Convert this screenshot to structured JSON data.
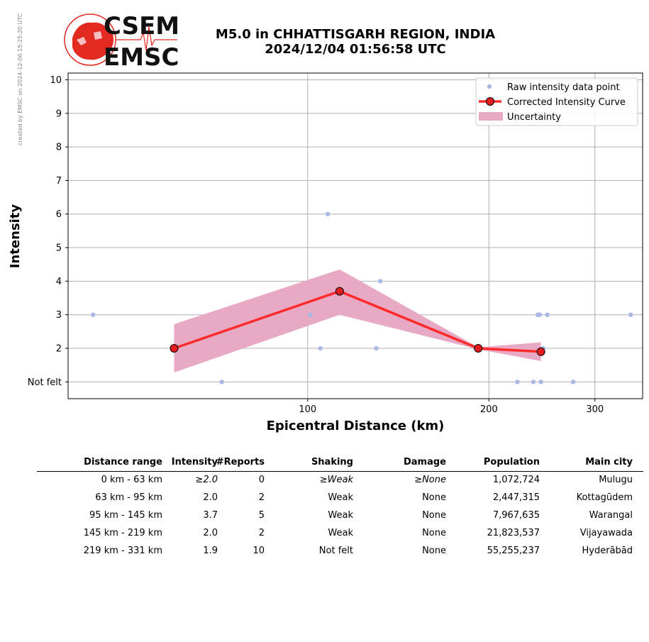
{
  "watermark": "created by EMSC on 2024-12-06 15:25:20 UTC",
  "logo": {
    "line1": "CSEM",
    "line2": "EMSC"
  },
  "title": {
    "line1": "M5.0 in CHHATTISGARH REGION, INDIA",
    "line2": "2024/12/04 01:56:58 UTC"
  },
  "colors": {
    "raw": "#aab8e6",
    "curve": "#ff2a2a",
    "marker": "#e31d1d",
    "band": "#e8a9c5"
  },
  "chart_data": {
    "type": "line",
    "xlabel": "Epicentral Distance (km)",
    "ylabel": "Intensity",
    "xscale": "log",
    "xlim": [
      40,
      360
    ],
    "ylim": [
      0.5,
      10.2
    ],
    "x_ticks": [
      100,
      200,
      300
    ],
    "y_ticks": [
      1,
      2,
      3,
      4,
      5,
      6,
      7,
      8,
      9,
      10
    ],
    "y_tick_labels": [
      "Not felt",
      "2",
      "3",
      "4",
      "5",
      "6",
      "7",
      "8",
      "9",
      "10"
    ],
    "grid": true,
    "legend": {
      "position": "top-right",
      "entries": [
        "Raw intensity data point",
        "Corrected Intensity Curve",
        "Uncertainty"
      ]
    },
    "raw_points": [
      {
        "x": 44,
        "y": 3
      },
      {
        "x": 72,
        "y": 1
      },
      {
        "x": 101,
        "y": 3
      },
      {
        "x": 105,
        "y": 2
      },
      {
        "x": 108,
        "y": 6
      },
      {
        "x": 130,
        "y": 2
      },
      {
        "x": 132,
        "y": 4
      },
      {
        "x": 190,
        "y": 2
      },
      {
        "x": 223,
        "y": 1
      },
      {
        "x": 237,
        "y": 1
      },
      {
        "x": 241,
        "y": 3
      },
      {
        "x": 243,
        "y": 3
      },
      {
        "x": 244,
        "y": 1
      },
      {
        "x": 246,
        "y": 2
      },
      {
        "x": 250,
        "y": 3
      },
      {
        "x": 276,
        "y": 1
      },
      {
        "x": 344,
        "y": 3
      }
    ],
    "curve": [
      {
        "x": 60,
        "y": 2.0
      },
      {
        "x": 113,
        "y": 3.7
      },
      {
        "x": 192,
        "y": 2.0
      },
      {
        "x": 244,
        "y": 1.9
      }
    ],
    "uncertainty": [
      {
        "x": 60,
        "low": 1.28,
        "high": 2.72
      },
      {
        "x": 113,
        "low": 3.0,
        "high": 4.35
      },
      {
        "x": 192,
        "low": 1.97,
        "high": 2.03
      },
      {
        "x": 244,
        "low": 1.62,
        "high": 2.18
      }
    ]
  },
  "table": {
    "headers": [
      "Distance range",
      "Intensity",
      "#Reports",
      "Shaking",
      "Damage",
      "Population",
      "Main city"
    ],
    "rows": [
      [
        "0 km -   63 km",
        "≥2.0",
        "0",
        "≥Weak",
        "≥None",
        "1,072,724",
        "Mulugu"
      ],
      [
        "63 km -   95 km",
        "2.0",
        "2",
        "Weak",
        "None",
        "2,447,315",
        "Kottagūdem"
      ],
      [
        "95 km -  145 km",
        "3.7",
        "5",
        "Weak",
        "None",
        "7,967,635",
        "Warangal"
      ],
      [
        "145 km -  219 km",
        "2.0",
        "2",
        "Weak",
        "None",
        "21,823,537",
        "Vijayawada"
      ],
      [
        "219 km -  331 km",
        "1.9",
        "10",
        "Not felt",
        "None",
        "55,255,237",
        "Hyderābād"
      ]
    ]
  }
}
